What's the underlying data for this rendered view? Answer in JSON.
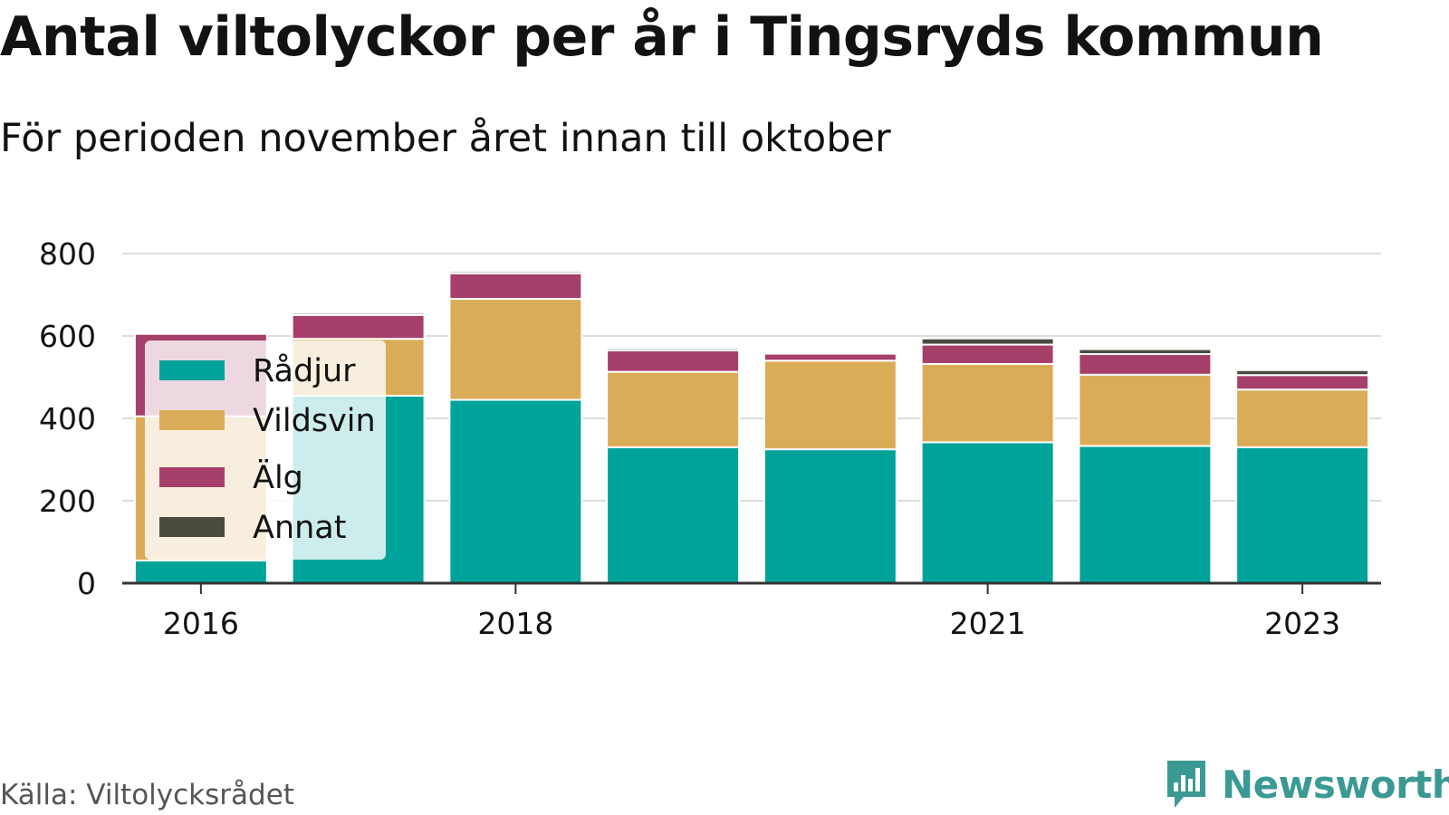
{
  "title": "Antal viltolyckor per år i Tingsryds kommun",
  "subtitle": "För perioden november året innan till oktober",
  "source": "Källa: Viltolycksrådet",
  "brand": {
    "name": "Newsworthy",
    "icon": "newsworthy-logo-icon",
    "color": "#3a9a93"
  },
  "chart_data": {
    "type": "bar",
    "stacked": true,
    "categories": [
      "2016",
      "2017",
      "2018",
      "2019",
      "2020",
      "2021",
      "2022",
      "2023"
    ],
    "x_tick_labels": [
      "2016",
      "2018",
      "2021",
      "2023"
    ],
    "y_ticks": [
      "0",
      "200",
      "400",
      "600",
      "800"
    ],
    "ylim": [
      0,
      800
    ],
    "grid": true,
    "legend_position": "left",
    "series": [
      {
        "name": "Rådjur",
        "color": "#00a39a",
        "values": [
          55,
          455,
          445,
          330,
          325,
          342,
          333,
          330
        ]
      },
      {
        "name": "Vildsvin",
        "color": "#dbac58",
        "values": [
          350,
          138,
          245,
          183,
          215,
          190,
          173,
          140
        ]
      },
      {
        "name": "Älg",
        "color": "#a63f69",
        "values": [
          200,
          58,
          62,
          52,
          17,
          47,
          50,
          35
        ]
      },
      {
        "name": "Annat",
        "color": "#4a4b3f",
        "values": [
          0,
          5,
          5,
          5,
          0,
          15,
          12,
          12
        ]
      }
    ]
  }
}
